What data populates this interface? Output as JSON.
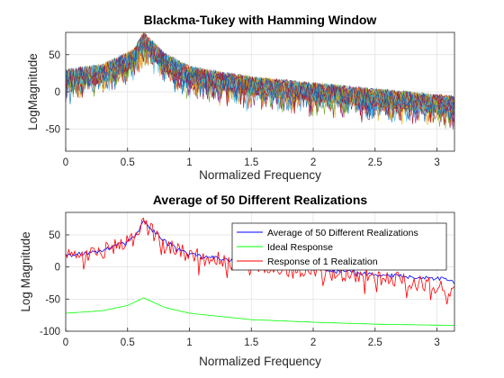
{
  "chart_data": [
    {
      "type": "line",
      "title": "Blackma-Tukey with Hamming Window",
      "xlabel": "Normalized Frequency",
      "ylabel": "LogMagnitude",
      "xlim": [
        0,
        3.14159
      ],
      "ylim": [
        -80,
        80
      ],
      "xticks": [
        0,
        0.5,
        1,
        1.5,
        2,
        2.5,
        3
      ],
      "xtick_labels": [
        "0",
        "0.5",
        "1",
        "1.5",
        "2",
        "2.5",
        "3"
      ],
      "yticks": [
        50,
        0,
        -50
      ],
      "ytick_labels": [
        "50",
        "0",
        "-50"
      ],
      "grid": true,
      "legend": "none",
      "realizations": 50,
      "peak": {
        "x": 0.63,
        "y": 75
      },
      "trend": {
        "x": [
          0,
          0.3,
          0.55,
          0.63,
          0.8,
          1.0,
          1.5,
          2.0,
          2.5,
          3.14
        ],
        "y": [
          18,
          25,
          45,
          68,
          40,
          22,
          8,
          0,
          -8,
          -18
        ]
      },
      "series_colors": [
        "#0072bd",
        "#d95319",
        "#edb120",
        "#7e2f8e",
        "#77ac30",
        "#4dbeee",
        "#a2142f"
      ]
    },
    {
      "type": "line",
      "title": "Average of 50 Different Realizations",
      "xlabel": "Normalized Frequency",
      "ylabel": "Log Magnitude",
      "xlim": [
        0,
        3.14159
      ],
      "ylim": [
        -100,
        85
      ],
      "xticks": [
        0,
        0.5,
        1,
        1.5,
        2,
        2.5,
        3
      ],
      "xtick_labels": [
        "0",
        "0.5",
        "1",
        "1.5",
        "2",
        "2.5",
        "3"
      ],
      "yticks": [
        50,
        0,
        -50,
        -100
      ],
      "ytick_labels": [
        "50",
        "0",
        "-50",
        "-100"
      ],
      "grid": true,
      "legend": "top-right",
      "series": [
        {
          "name": "Average of 50 Different Realizations",
          "color": "#0000ff",
          "x": [
            0,
            0.3,
            0.55,
            0.63,
            0.8,
            1.0,
            1.5,
            2.0,
            2.5,
            3.14
          ],
          "y": [
            18,
            25,
            45,
            70,
            40,
            20,
            5,
            -2,
            -12,
            -20
          ]
        },
        {
          "name": "Ideal Response",
          "color": "#00ff00",
          "x": [
            0,
            0.3,
            0.5,
            0.63,
            0.8,
            1.0,
            1.5,
            2.0,
            2.5,
            3.14
          ],
          "y": [
            -72,
            -68,
            -60,
            -48,
            -63,
            -72,
            -82,
            -86,
            -89,
            -91
          ]
        },
        {
          "name": "Response of 1 Realization",
          "color": "#ff0000",
          "x": [
            0,
            0.3,
            0.55,
            0.63,
            0.8,
            1.0,
            1.5,
            2.0,
            2.5,
            3.14
          ],
          "y": [
            18,
            25,
            45,
            68,
            38,
            18,
            2,
            -6,
            -15,
            -35
          ]
        }
      ]
    }
  ]
}
